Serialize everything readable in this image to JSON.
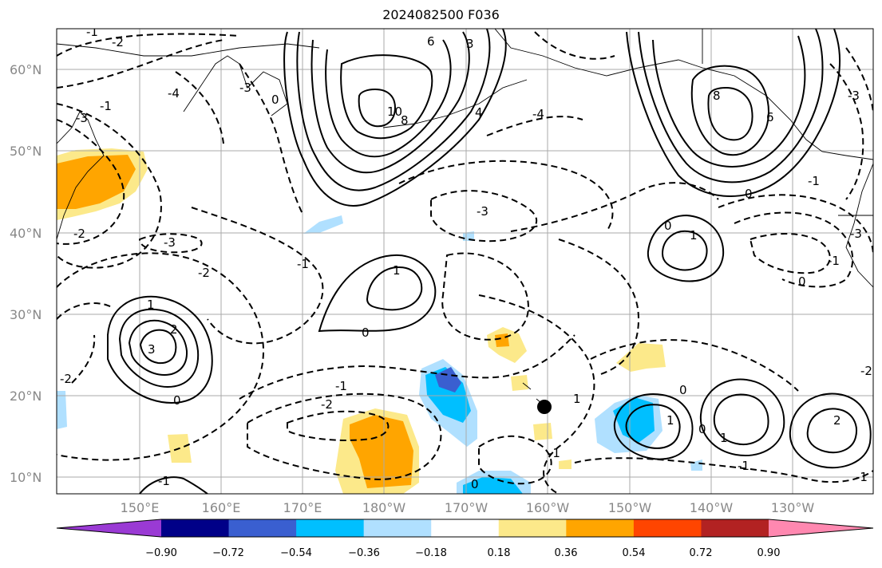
{
  "title": "2024082500 F036",
  "map": {
    "lat_labels": [
      "60°N",
      "50°N",
      "40°N",
      "30°N",
      "20°N",
      "10°N"
    ],
    "lon_labels": [
      "150°E",
      "160°E",
      "170°E",
      "180°W",
      "170°W",
      "160°W",
      "150°W",
      "140°W",
      "130°W"
    ],
    "contour_labels": [
      "-2",
      "-1",
      "-4",
      "-3",
      "-1",
      "-3",
      "0",
      "6",
      "3",
      "10",
      "8",
      "-4",
      "4",
      "8",
      "6",
      "0",
      "-3",
      "1",
      "-1",
      "-3",
      "-1",
      "0",
      "-2",
      "-3",
      "1",
      "0",
      "-1",
      "-2",
      "-3",
      "0",
      "1",
      "2",
      "3",
      "-2",
      "-2",
      "-1",
      "0",
      "1",
      "-1",
      "0",
      "1",
      "2",
      "0",
      "-1",
      "-1",
      "0",
      "-2",
      "-1",
      "1"
    ],
    "marker": "typhoon-center-marker"
  },
  "colorbar": {
    "colors": [
      "#9a3ad4",
      "#000088",
      "#3a5fd0",
      "#00bfff",
      "#b0e0ff",
      "#ffffff",
      "#fce98a",
      "#ffa500",
      "#ff4500",
      "#b22222",
      "#ff88b0"
    ],
    "tick_labels": [
      "−0.90",
      "−0.72",
      "−0.54",
      "−0.36",
      "−0.18",
      "0.18",
      "0.36",
      "0.54",
      "0.72",
      "0.90"
    ]
  }
}
